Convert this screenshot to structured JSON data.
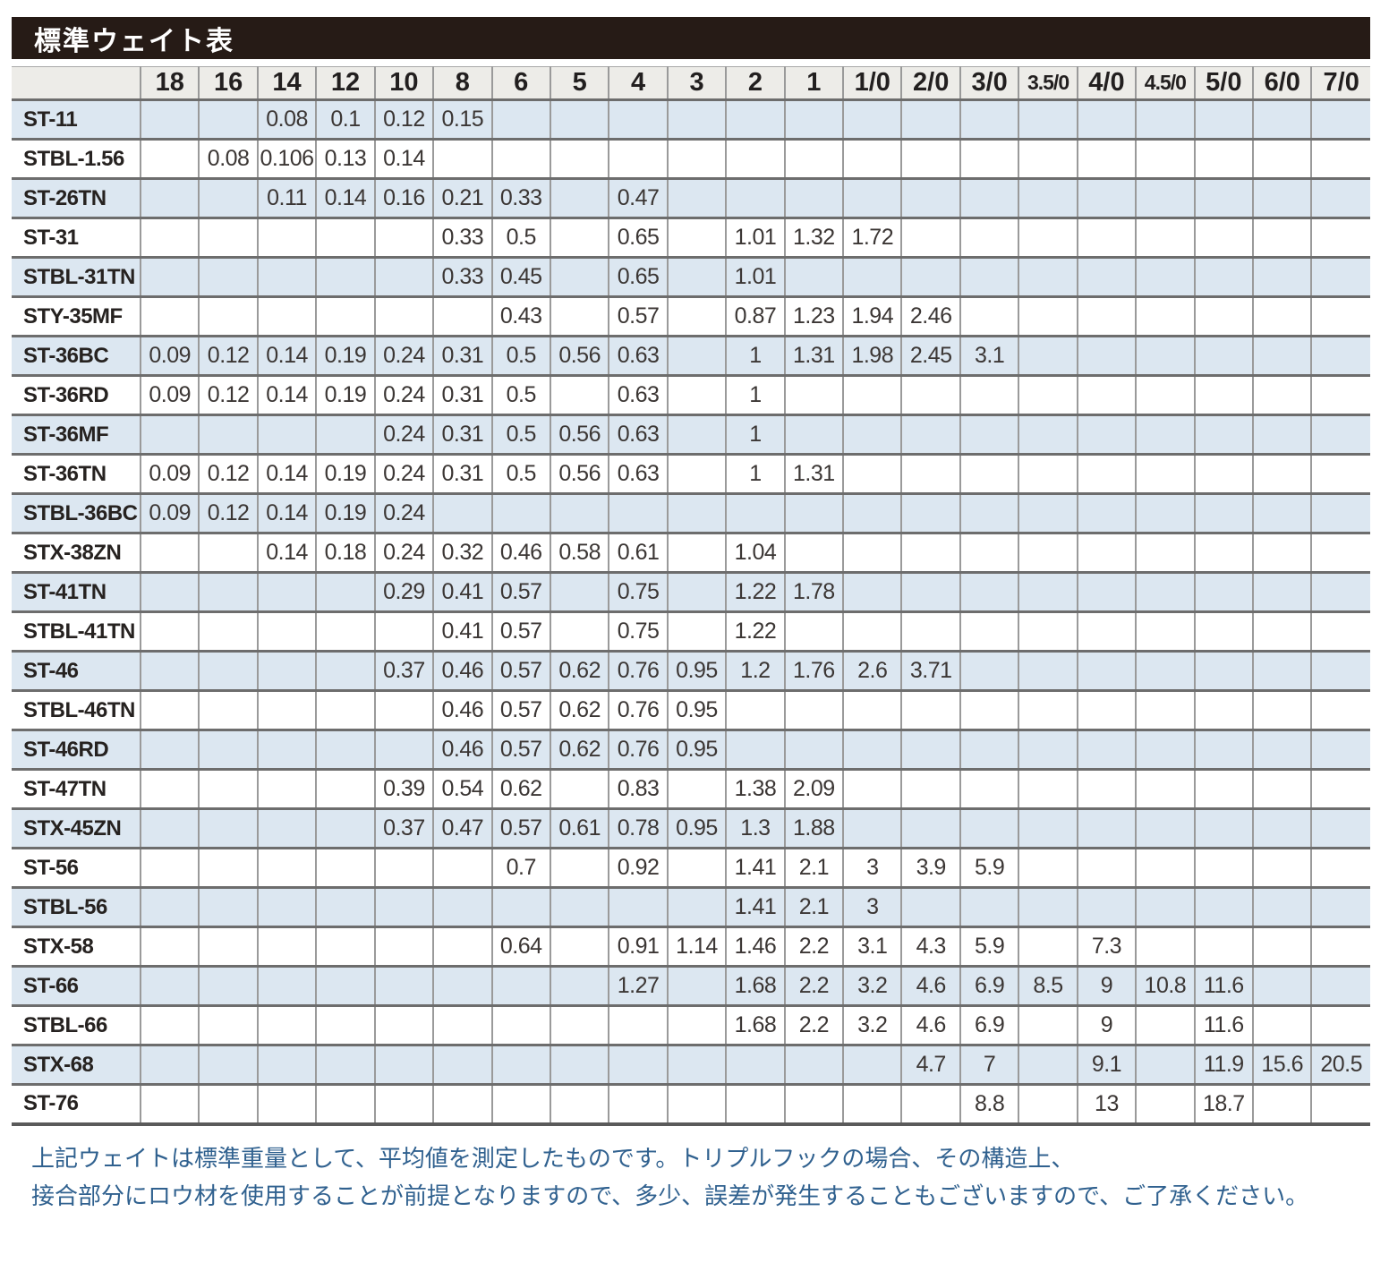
{
  "title": "標準ウェイト表",
  "table": {
    "columns": [
      "18",
      "16",
      "14",
      "12",
      "10",
      "8",
      "6",
      "5",
      "4",
      "3",
      "2",
      "1",
      "1/0",
      "2/0",
      "3/0",
      "3.5/0",
      "4/0",
      "4.5/0",
      "5/0",
      "6/0",
      "7/0"
    ],
    "rows": [
      {
        "name": "ST-11",
        "values": [
          "",
          "",
          "0.08",
          "0.1",
          "0.12",
          "0.15",
          "",
          "",
          "",
          "",
          "",
          "",
          "",
          "",
          "",
          "",
          "",
          "",
          "",
          "",
          ""
        ]
      },
      {
        "name": "STBL-1.56",
        "values": [
          "",
          "0.08",
          "0.106",
          "0.13",
          "0.14",
          "",
          "",
          "",
          "",
          "",
          "",
          "",
          "",
          "",
          "",
          "",
          "",
          "",
          "",
          "",
          ""
        ]
      },
      {
        "name": "ST-26TN",
        "values": [
          "",
          "",
          "0.11",
          "0.14",
          "0.16",
          "0.21",
          "0.33",
          "",
          "0.47",
          "",
          "",
          "",
          "",
          "",
          "",
          "",
          "",
          "",
          "",
          "",
          ""
        ]
      },
      {
        "name": "ST-31",
        "values": [
          "",
          "",
          "",
          "",
          "",
          "0.33",
          "0.5",
          "",
          "0.65",
          "",
          "1.01",
          "1.32",
          "1.72",
          "",
          "",
          "",
          "",
          "",
          "",
          "",
          ""
        ]
      },
      {
        "name": "STBL-31TN",
        "values": [
          "",
          "",
          "",
          "",
          "",
          "0.33",
          "0.45",
          "",
          "0.65",
          "",
          "1.01",
          "",
          "",
          "",
          "",
          "",
          "",
          "",
          "",
          "",
          ""
        ]
      },
      {
        "name": "STY-35MF",
        "values": [
          "",
          "",
          "",
          "",
          "",
          "",
          "0.43",
          "",
          "0.57",
          "",
          "0.87",
          "1.23",
          "1.94",
          "2.46",
          "",
          "",
          "",
          "",
          "",
          "",
          ""
        ]
      },
      {
        "name": "ST-36BC",
        "values": [
          "0.09",
          "0.12",
          "0.14",
          "0.19",
          "0.24",
          "0.31",
          "0.5",
          "0.56",
          "0.63",
          "",
          "1",
          "1.31",
          "1.98",
          "2.45",
          "3.1",
          "",
          "",
          "",
          "",
          "",
          ""
        ]
      },
      {
        "name": "ST-36RD",
        "values": [
          "0.09",
          "0.12",
          "0.14",
          "0.19",
          "0.24",
          "0.31",
          "0.5",
          "",
          "0.63",
          "",
          "1",
          "",
          "",
          "",
          "",
          "",
          "",
          "",
          "",
          "",
          ""
        ]
      },
      {
        "name": "ST-36MF",
        "values": [
          "",
          "",
          "",
          "",
          "0.24",
          "0.31",
          "0.5",
          "0.56",
          "0.63",
          "",
          "1",
          "",
          "",
          "",
          "",
          "",
          "",
          "",
          "",
          "",
          ""
        ]
      },
      {
        "name": "ST-36TN",
        "values": [
          "0.09",
          "0.12",
          "0.14",
          "0.19",
          "0.24",
          "0.31",
          "0.5",
          "0.56",
          "0.63",
          "",
          "1",
          "1.31",
          "",
          "",
          "",
          "",
          "",
          "",
          "",
          "",
          ""
        ]
      },
      {
        "name": "STBL-36BC",
        "values": [
          "0.09",
          "0.12",
          "0.14",
          "0.19",
          "0.24",
          "",
          "",
          "",
          "",
          "",
          "",
          "",
          "",
          "",
          "",
          "",
          "",
          "",
          "",
          "",
          ""
        ]
      },
      {
        "name": "STX-38ZN",
        "values": [
          "",
          "",
          "0.14",
          "0.18",
          "0.24",
          "0.32",
          "0.46",
          "0.58",
          "0.61",
          "",
          "1.04",
          "",
          "",
          "",
          "",
          "",
          "",
          "",
          "",
          "",
          ""
        ]
      },
      {
        "name": "ST-41TN",
        "values": [
          "",
          "",
          "",
          "",
          "0.29",
          "0.41",
          "0.57",
          "",
          "0.75",
          "",
          "1.22",
          "1.78",
          "",
          "",
          "",
          "",
          "",
          "",
          "",
          "",
          ""
        ]
      },
      {
        "name": "STBL-41TN",
        "values": [
          "",
          "",
          "",
          "",
          "",
          "0.41",
          "0.57",
          "",
          "0.75",
          "",
          "1.22",
          "",
          "",
          "",
          "",
          "",
          "",
          "",
          "",
          "",
          ""
        ]
      },
      {
        "name": "ST-46",
        "values": [
          "",
          "",
          "",
          "",
          "0.37",
          "0.46",
          "0.57",
          "0.62",
          "0.76",
          "0.95",
          "1.2",
          "1.76",
          "2.6",
          "3.71",
          "",
          "",
          "",
          "",
          "",
          "",
          ""
        ]
      },
      {
        "name": "STBL-46TN",
        "values": [
          "",
          "",
          "",
          "",
          "",
          "0.46",
          "0.57",
          "0.62",
          "0.76",
          "0.95",
          "",
          "",
          "",
          "",
          "",
          "",
          "",
          "",
          "",
          "",
          ""
        ]
      },
      {
        "name": "ST-46RD",
        "values": [
          "",
          "",
          "",
          "",
          "",
          "0.46",
          "0.57",
          "0.62",
          "0.76",
          "0.95",
          "",
          "",
          "",
          "",
          "",
          "",
          "",
          "",
          "",
          "",
          ""
        ]
      },
      {
        "name": "ST-47TN",
        "values": [
          "",
          "",
          "",
          "",
          "0.39",
          "0.54",
          "0.62",
          "",
          "0.83",
          "",
          "1.38",
          "2.09",
          "",
          "",
          "",
          "",
          "",
          "",
          "",
          "",
          ""
        ]
      },
      {
        "name": "STX-45ZN",
        "values": [
          "",
          "",
          "",
          "",
          "0.37",
          "0.47",
          "0.57",
          "0.61",
          "0.78",
          "0.95",
          "1.3",
          "1.88",
          "",
          "",
          "",
          "",
          "",
          "",
          "",
          "",
          ""
        ]
      },
      {
        "name": "ST-56",
        "values": [
          "",
          "",
          "",
          "",
          "",
          "",
          "0.7",
          "",
          "0.92",
          "",
          "1.41",
          "2.1",
          "3",
          "3.9",
          "5.9",
          "",
          "",
          "",
          "",
          "",
          ""
        ]
      },
      {
        "name": "STBL-56",
        "values": [
          "",
          "",
          "",
          "",
          "",
          "",
          "",
          "",
          "",
          "",
          "1.41",
          "2.1",
          "3",
          "",
          "",
          "",
          "",
          "",
          "",
          "",
          ""
        ]
      },
      {
        "name": "STX-58",
        "values": [
          "",
          "",
          "",
          "",
          "",
          "",
          "0.64",
          "",
          "0.91",
          "1.14",
          "1.46",
          "2.2",
          "3.1",
          "4.3",
          "5.9",
          "",
          "7.3",
          "",
          "",
          "",
          ""
        ]
      },
      {
        "name": "ST-66",
        "values": [
          "",
          "",
          "",
          "",
          "",
          "",
          "",
          "",
          "1.27",
          "",
          "1.68",
          "2.2",
          "3.2",
          "4.6",
          "6.9",
          "8.5",
          "9",
          "10.8",
          "11.6",
          "",
          ""
        ]
      },
      {
        "name": "STBL-66",
        "values": [
          "",
          "",
          "",
          "",
          "",
          "",
          "",
          "",
          "",
          "",
          "1.68",
          "2.2",
          "3.2",
          "4.6",
          "6.9",
          "",
          "9",
          "",
          "11.6",
          "",
          ""
        ]
      },
      {
        "name": "STX-68",
        "values": [
          "",
          "",
          "",
          "",
          "",
          "",
          "",
          "",
          "",
          "",
          "",
          "",
          "",
          "4.7",
          "7",
          "",
          "9.1",
          "",
          "11.9",
          "15.6",
          "20.5"
        ]
      },
      {
        "name": "ST-76",
        "values": [
          "",
          "",
          "",
          "",
          "",
          "",
          "",
          "",
          "",
          "",
          "",
          "",
          "",
          "",
          "8.8",
          "",
          "13",
          "",
          "18.7",
          "",
          ""
        ]
      }
    ]
  },
  "footer": {
    "line1": "上記ウェイトは標準重量として、平均値を測定したものです。トリプルフックの場合、その構造上、",
    "line2": "接合部分にロウ材を使用することが前提となりますので、多少、誤差が発生することもございますので、ご了承ください。"
  },
  "colors": {
    "title_bar_bg": "#261b16",
    "header_bg": "#edece8",
    "stripe_blue": "#dce7f1",
    "grid_vertical": "#9a9a9a",
    "grid_horizontal": "#6d6d6d",
    "footer_text": "#30618f",
    "cell_text": "#3b3634"
  }
}
